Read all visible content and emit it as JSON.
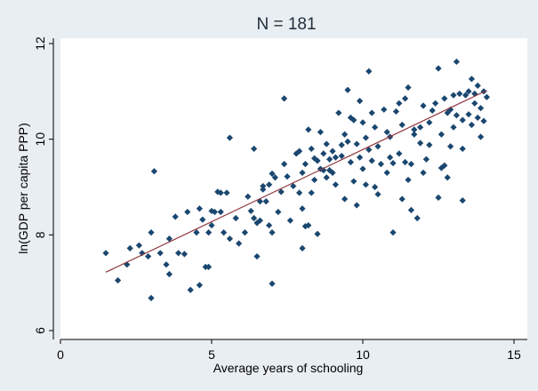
{
  "chart_data": {
    "type": "scatter",
    "title": "N = 181",
    "xlabel": "Average years of schooling",
    "ylabel": "ln(GDP per capita PPP)",
    "xlim": [
      0,
      15
    ],
    "ylim": [
      6,
      12
    ],
    "xticks": [
      0,
      5,
      10,
      15
    ],
    "yticks": [
      6,
      8,
      10,
      12
    ],
    "grid": false,
    "legend": "none",
    "colors": {
      "background": "#e9eef2",
      "plot_area": "#ffffff",
      "marker": "#1a476f",
      "fit_line": "#90353b",
      "axis": "#000000"
    },
    "series": [
      {
        "marker": "diamond",
        "points": [
          [
            1.5,
            7.62
          ],
          [
            1.9,
            7.05
          ],
          [
            2.2,
            7.38
          ],
          [
            2.3,
            7.72
          ],
          [
            2.6,
            7.78
          ],
          [
            2.7,
            7.62
          ],
          [
            2.9,
            7.55
          ],
          [
            3.0,
            8.05
          ],
          [
            3.0,
            6.68
          ],
          [
            3.1,
            9.33
          ],
          [
            3.3,
            7.62
          ],
          [
            3.5,
            7.38
          ],
          [
            3.6,
            7.18
          ],
          [
            3.6,
            7.92
          ],
          [
            3.8,
            8.38
          ],
          [
            3.9,
            7.62
          ],
          [
            4.1,
            7.6
          ],
          [
            4.2,
            8.48
          ],
          [
            4.3,
            6.85
          ],
          [
            4.5,
            8.05
          ],
          [
            4.6,
            6.95
          ],
          [
            4.6,
            8.55
          ],
          [
            4.7,
            8.32
          ],
          [
            4.8,
            7.33
          ],
          [
            4.9,
            8.05
          ],
          [
            4.9,
            7.33
          ],
          [
            5.0,
            8.5
          ],
          [
            5.0,
            8.2
          ],
          [
            5.1,
            8.48
          ],
          [
            5.2,
            8.9
          ],
          [
            5.3,
            8.88
          ],
          [
            5.3,
            8.48
          ],
          [
            5.4,
            8.05
          ],
          [
            5.5,
            8.88
          ],
          [
            5.6,
            10.03
          ],
          [
            5.6,
            7.92
          ],
          [
            5.8,
            8.35
          ],
          [
            5.9,
            7.82
          ],
          [
            6.1,
            8.05
          ],
          [
            6.2,
            8.8
          ],
          [
            6.3,
            8.5
          ],
          [
            6.4,
            9.8
          ],
          [
            6.4,
            8.35
          ],
          [
            6.5,
            8.25
          ],
          [
            6.5,
            7.55
          ],
          [
            6.6,
            8.7
          ],
          [
            6.6,
            8.3
          ],
          [
            6.7,
            9.02
          ],
          [
            6.8,
            8.7
          ],
          [
            6.9,
            8.2
          ],
          [
            6.9,
            9.05
          ],
          [
            7.0,
            9.28
          ],
          [
            7.0,
            8.05
          ],
          [
            7.0,
            6.98
          ],
          [
            7.1,
            9.2
          ],
          [
            7.2,
            8.48
          ],
          [
            7.3,
            8.9
          ],
          [
            7.4,
            10.85
          ],
          [
            7.4,
            9.48
          ],
          [
            7.5,
            9.22
          ],
          [
            7.6,
            8.3
          ],
          [
            7.7,
            9.02
          ],
          [
            7.8,
            9.7
          ],
          [
            7.9,
            9.75
          ],
          [
            8.0,
            9.3
          ],
          [
            8.0,
            8.55
          ],
          [
            8.0,
            7.72
          ],
          [
            8.1,
            9.48
          ],
          [
            8.1,
            8.18
          ],
          [
            8.2,
            8.2
          ],
          [
            8.2,
            10.2
          ],
          [
            8.3,
            9.8
          ],
          [
            8.3,
            8.88
          ],
          [
            8.4,
            9.6
          ],
          [
            8.5,
            8.02
          ],
          [
            8.5,
            9.55
          ],
          [
            8.6,
            9.38
          ],
          [
            8.6,
            10.15
          ],
          [
            8.7,
            9.35
          ],
          [
            8.7,
            9.7
          ],
          [
            8.8,
            9.2
          ],
          [
            8.8,
            9.9
          ],
          [
            8.9,
            9.58
          ],
          [
            9.0,
            9.75
          ],
          [
            9.0,
            9.3
          ],
          [
            9.1,
            9.62
          ],
          [
            9.1,
            9.05
          ],
          [
            9.2,
            10.55
          ],
          [
            9.3,
            9.65
          ],
          [
            9.3,
            9.88
          ],
          [
            9.4,
            10.1
          ],
          [
            9.4,
            8.75
          ],
          [
            9.5,
            9.95
          ],
          [
            9.5,
            11.03
          ],
          [
            9.6,
            10.45
          ],
          [
            9.6,
            9.52
          ],
          [
            9.7,
            9.12
          ],
          [
            9.8,
            9.9
          ],
          [
            9.8,
            8.62
          ],
          [
            9.9,
            9.62
          ],
          [
            10.0,
            9.38
          ],
          [
            10.0,
            10.35
          ],
          [
            10.1,
            9.05
          ],
          [
            10.1,
            10.03
          ],
          [
            10.2,
            9.78
          ],
          [
            10.2,
            11.42
          ],
          [
            10.3,
            10.55
          ],
          [
            10.3,
            9.55
          ],
          [
            10.4,
            10.25
          ],
          [
            10.5,
            9.85
          ],
          [
            10.5,
            8.85
          ],
          [
            10.6,
            9.48
          ],
          [
            10.7,
            10.62
          ],
          [
            10.8,
            9.3
          ],
          [
            10.8,
            10.15
          ],
          [
            10.9,
            10.05
          ],
          [
            11.0,
            9.5
          ],
          [
            11.0,
            8.05
          ],
          [
            11.1,
            10.58
          ],
          [
            11.2,
            9.7
          ],
          [
            11.3,
            10.3
          ],
          [
            11.3,
            8.75
          ],
          [
            11.4,
            9.52
          ],
          [
            11.4,
            10.85
          ],
          [
            11.5,
            11.08
          ],
          [
            11.5,
            9.15
          ],
          [
            11.6,
            9.48
          ],
          [
            11.6,
            8.52
          ],
          [
            11.7,
            10.2
          ],
          [
            11.7,
            10.1
          ],
          [
            11.8,
            8.35
          ],
          [
            11.9,
            10.25
          ],
          [
            12.0,
            10.7
          ],
          [
            12.0,
            9.3
          ],
          [
            12.1,
            9.58
          ],
          [
            12.2,
            10.35
          ],
          [
            12.2,
            9.88
          ],
          [
            12.3,
            10.6
          ],
          [
            12.4,
            10.75
          ],
          [
            12.5,
            11.48
          ],
          [
            12.5,
            8.78
          ],
          [
            12.6,
            10.1
          ],
          [
            12.6,
            9.4
          ],
          [
            12.7,
            10.85
          ],
          [
            12.7,
            9.45
          ],
          [
            12.8,
            10.55
          ],
          [
            12.9,
            10.62
          ],
          [
            12.9,
            9.85
          ],
          [
            13.0,
            10.92
          ],
          [
            13.0,
            10.25
          ],
          [
            13.1,
            11.62
          ],
          [
            13.1,
            10.5
          ],
          [
            13.2,
            10.95
          ],
          [
            13.3,
            10.4
          ],
          [
            13.3,
            9.8
          ],
          [
            13.4,
            10.92
          ],
          [
            13.5,
            11.0
          ],
          [
            13.5,
            10.52
          ],
          [
            13.6,
            11.26
          ],
          [
            13.6,
            10.3
          ],
          [
            13.7,
            10.75
          ],
          [
            13.7,
            10.95
          ],
          [
            13.8,
            11.12
          ],
          [
            13.8,
            10.45
          ],
          [
            13.9,
            10.05
          ],
          [
            13.9,
            10.65
          ],
          [
            14.0,
            11.0
          ],
          [
            14.0,
            10.38
          ],
          [
            13.3,
            8.72
          ],
          [
            12.8,
            9.2
          ],
          [
            11.9,
            9.92
          ],
          [
            11.2,
            10.75
          ],
          [
            10.9,
            9.62
          ],
          [
            10.4,
            9.0
          ],
          [
            9.9,
            10.8
          ],
          [
            9.7,
            10.4
          ],
          [
            8.9,
            9.35
          ],
          [
            8.4,
            9.15
          ],
          [
            7.9,
            8.88
          ],
          [
            6.7,
            8.95
          ],
          [
            14.1,
            10.88
          ]
        ]
      }
    ],
    "fit_line": {
      "x": [
        1.5,
        14.1
      ],
      "y": [
        7.22,
        11.02
      ]
    }
  }
}
